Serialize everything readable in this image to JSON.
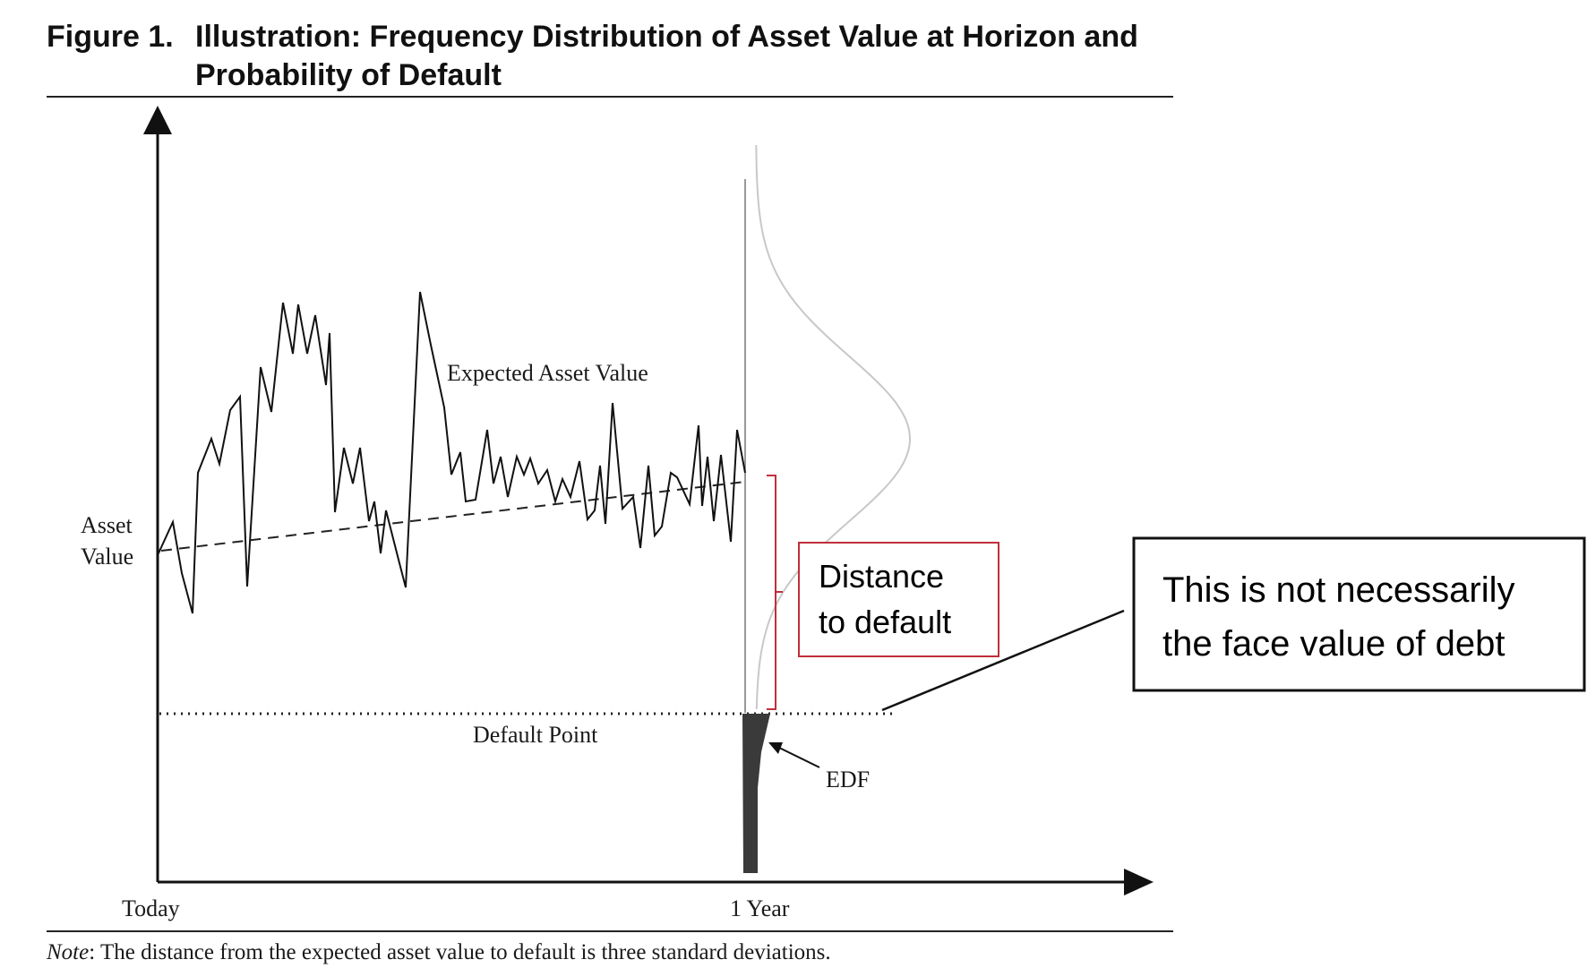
{
  "figure": {
    "label": "Figure 1.",
    "title_line1": "Illustration: Frequency Distribution of Asset Value at Horizon and",
    "title_line2": "Probability of Default"
  },
  "labels": {
    "asset_value_line1": "Asset",
    "asset_value_line2": "Value",
    "expected_asset_value": "Expected Asset Value",
    "default_point": "Default Point",
    "edf": "EDF",
    "x_start": "Today",
    "x_end": "1 Year"
  },
  "distance_box": {
    "line1": "Distance",
    "line2": "to default"
  },
  "callout": {
    "line1": "This is not necessarily",
    "line2": "the face value of debt"
  },
  "note": {
    "prefix": "Note",
    "text": ": The distance from the expected asset value to default is three standard deviations."
  },
  "colors": {
    "bracket": "#c0303a",
    "edf_fill": "#3a3a3a",
    "distribution_curve": "#c8c8c8"
  }
}
